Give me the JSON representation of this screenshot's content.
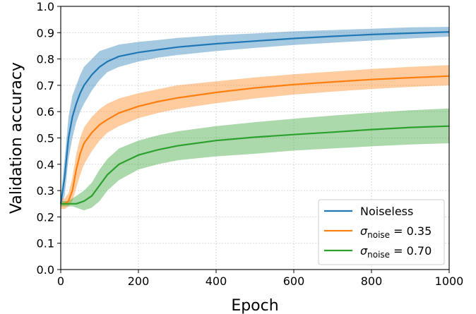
{
  "chart_data": {
    "type": "line",
    "xlabel": "Epoch",
    "ylabel": "Validation accuracy",
    "xlim": [
      0,
      1000
    ],
    "ylim": [
      0.0,
      1.0
    ],
    "xticks": [
      0,
      200,
      400,
      600,
      800,
      1000
    ],
    "xtick_labels": [
      "0",
      "200",
      "400",
      "600",
      "800",
      "1000"
    ],
    "yticks": [
      0.0,
      0.1,
      0.2,
      0.3,
      0.4,
      0.5,
      0.6,
      0.7,
      0.8,
      0.9,
      1.0
    ],
    "ytick_labels": [
      "0.0",
      "0.1",
      "0.2",
      "0.3",
      "0.4",
      "0.5",
      "0.6",
      "0.7",
      "0.8",
      "0.9",
      "1.0"
    ],
    "grid": true,
    "legend_position": "bottom-right",
    "x": [
      0,
      10,
      20,
      30,
      40,
      50,
      60,
      80,
      100,
      120,
      150,
      200,
      250,
      300,
      400,
      500,
      600,
      700,
      800,
      900,
      1000
    ],
    "series": [
      {
        "name": "Noiseless",
        "legend_parts": [
          "Noiseless"
        ],
        "color": "#1f77b4",
        "values": [
          0.25,
          0.35,
          0.5,
          0.58,
          0.63,
          0.67,
          0.7,
          0.74,
          0.77,
          0.79,
          0.81,
          0.825,
          0.835,
          0.845,
          0.858,
          0.868,
          0.878,
          0.886,
          0.893,
          0.898,
          0.903
        ],
        "lower": [
          0.24,
          0.28,
          0.42,
          0.5,
          0.56,
          0.6,
          0.63,
          0.68,
          0.72,
          0.75,
          0.77,
          0.79,
          0.805,
          0.815,
          0.83,
          0.842,
          0.853,
          0.862,
          0.87,
          0.878,
          0.885
        ],
        "upper": [
          0.27,
          0.42,
          0.58,
          0.66,
          0.7,
          0.74,
          0.77,
          0.8,
          0.83,
          0.84,
          0.855,
          0.865,
          0.872,
          0.88,
          0.89,
          0.897,
          0.905,
          0.91,
          0.915,
          0.92,
          0.922
        ]
      },
      {
        "name": "σnoise = 0.35",
        "legend_parts": [
          "σ",
          "noise",
          " = 0.35"
        ],
        "color": "#ff7f0e",
        "values": [
          0.25,
          0.25,
          0.26,
          0.3,
          0.38,
          0.44,
          0.48,
          0.52,
          0.55,
          0.57,
          0.595,
          0.62,
          0.638,
          0.652,
          0.673,
          0.69,
          0.703,
          0.713,
          0.722,
          0.729,
          0.735
        ],
        "lower": [
          0.23,
          0.23,
          0.24,
          0.26,
          0.31,
          0.36,
          0.4,
          0.45,
          0.49,
          0.52,
          0.545,
          0.575,
          0.595,
          0.61,
          0.632,
          0.65,
          0.665,
          0.676,
          0.686,
          0.694,
          0.7
        ],
        "upper": [
          0.27,
          0.27,
          0.29,
          0.35,
          0.44,
          0.5,
          0.54,
          0.58,
          0.61,
          0.63,
          0.65,
          0.67,
          0.685,
          0.7,
          0.715,
          0.73,
          0.742,
          0.752,
          0.762,
          0.77,
          0.777
        ]
      },
      {
        "name": "σnoise = 0.70",
        "legend_parts": [
          "σ",
          "noise",
          " = 0.70"
        ],
        "color": "#2ca02c",
        "values": [
          0.25,
          0.25,
          0.25,
          0.25,
          0.25,
          0.255,
          0.26,
          0.28,
          0.32,
          0.36,
          0.4,
          0.435,
          0.455,
          0.47,
          0.49,
          0.503,
          0.513,
          0.522,
          0.532,
          0.54,
          0.545
        ],
        "lower": [
          0.24,
          0.24,
          0.24,
          0.24,
          0.235,
          0.23,
          0.225,
          0.235,
          0.26,
          0.3,
          0.34,
          0.38,
          0.4,
          0.415,
          0.43,
          0.44,
          0.452,
          0.46,
          0.468,
          0.475,
          0.48
        ],
        "upper": [
          0.26,
          0.26,
          0.26,
          0.27,
          0.28,
          0.29,
          0.3,
          0.33,
          0.38,
          0.42,
          0.46,
          0.49,
          0.51,
          0.525,
          0.545,
          0.56,
          0.573,
          0.585,
          0.596,
          0.605,
          0.612
        ]
      }
    ]
  }
}
